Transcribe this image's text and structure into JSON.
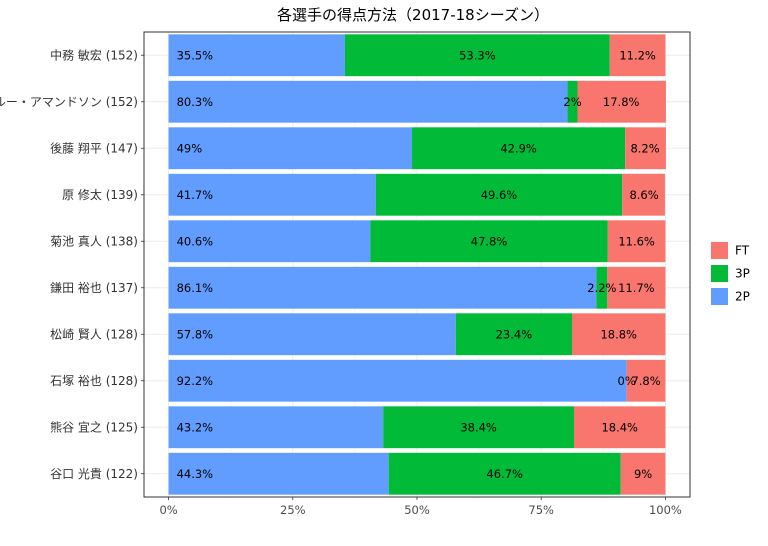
{
  "chart_data": {
    "type": "bar",
    "orientation": "horizontal",
    "stacked": "percent",
    "title": "各選手の得点方法（2017-18シーズン）",
    "xlabel": "",
    "ylabel": "",
    "xlim": [
      0,
      100
    ],
    "x_ticks": [
      "0%",
      "25%",
      "50%",
      "75%",
      "100%"
    ],
    "grid": true,
    "legend_position": "right",
    "categories": [
      "中務 敏宏 (152)",
      "ルー・アマンドソン (152)",
      "後藤 翔平 (147)",
      "原 修太 (139)",
      "菊池 真人 (138)",
      "鎌田 裕也 (137)",
      "松崎 賢人 (128)",
      "石塚 裕也 (128)",
      "熊谷 宜之 (125)",
      "谷口 光貴 (122)"
    ],
    "series": [
      {
        "name": "2P",
        "color": "#619CFF",
        "values": [
          35.5,
          80.3,
          49,
          41.7,
          40.6,
          86.1,
          57.8,
          92.2,
          43.2,
          44.3
        ],
        "labels": [
          "35.5%",
          "80.3%",
          "49%",
          "41.7%",
          "40.6%",
          "86.1%",
          "57.8%",
          "92.2%",
          "43.2%",
          "44.3%"
        ]
      },
      {
        "name": "3P",
        "color": "#00BA38",
        "values": [
          53.3,
          2,
          42.9,
          49.6,
          47.8,
          2.2,
          23.4,
          0,
          38.4,
          46.7
        ],
        "labels": [
          "53.3%",
          "2%",
          "42.9%",
          "49.6%",
          "47.8%",
          "2.2%",
          "23.4%",
          "0%",
          "38.4%",
          "46.7%"
        ]
      },
      {
        "name": "FT",
        "color": "#F8766D",
        "values": [
          11.2,
          17.8,
          8.2,
          8.6,
          11.6,
          11.7,
          18.8,
          7.8,
          18.4,
          9
        ],
        "labels": [
          "11.2%",
          "17.8%",
          "8.2%",
          "8.6%",
          "11.6%",
          "11.7%",
          "18.8%",
          "7.8%",
          "18.4%",
          "9%"
        ]
      }
    ],
    "legend_order": [
      "FT",
      "3P",
      "2P"
    ]
  }
}
